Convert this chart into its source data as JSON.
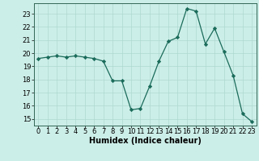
{
  "x": [
    0,
    1,
    2,
    3,
    4,
    5,
    6,
    7,
    8,
    9,
    10,
    11,
    12,
    13,
    14,
    15,
    16,
    17,
    18,
    19,
    20,
    21,
    22,
    23
  ],
  "y": [
    19.6,
    19.7,
    19.8,
    19.7,
    19.8,
    19.7,
    19.6,
    19.4,
    17.9,
    17.9,
    15.7,
    15.8,
    17.5,
    19.4,
    20.9,
    21.2,
    23.4,
    23.2,
    20.7,
    21.9,
    20.1,
    18.3,
    15.4,
    14.8
  ],
  "line_color": "#1a6b5a",
  "marker": "D",
  "marker_size": 2.2,
  "background_color": "#cceee8",
  "grid_color": "#aed8d2",
  "xlabel": "Humidex (Indice chaleur)",
  "xlim": [
    -0.5,
    23.5
  ],
  "ylim": [
    14.5,
    23.8
  ],
  "yticks": [
    15,
    16,
    17,
    18,
    19,
    20,
    21,
    22,
    23
  ],
  "xticks": [
    0,
    1,
    2,
    3,
    4,
    5,
    6,
    7,
    8,
    9,
    10,
    11,
    12,
    13,
    14,
    15,
    16,
    17,
    18,
    19,
    20,
    21,
    22,
    23
  ],
  "tick_fontsize": 6.0,
  "xlabel_fontsize": 7.0,
  "linewidth": 0.9
}
